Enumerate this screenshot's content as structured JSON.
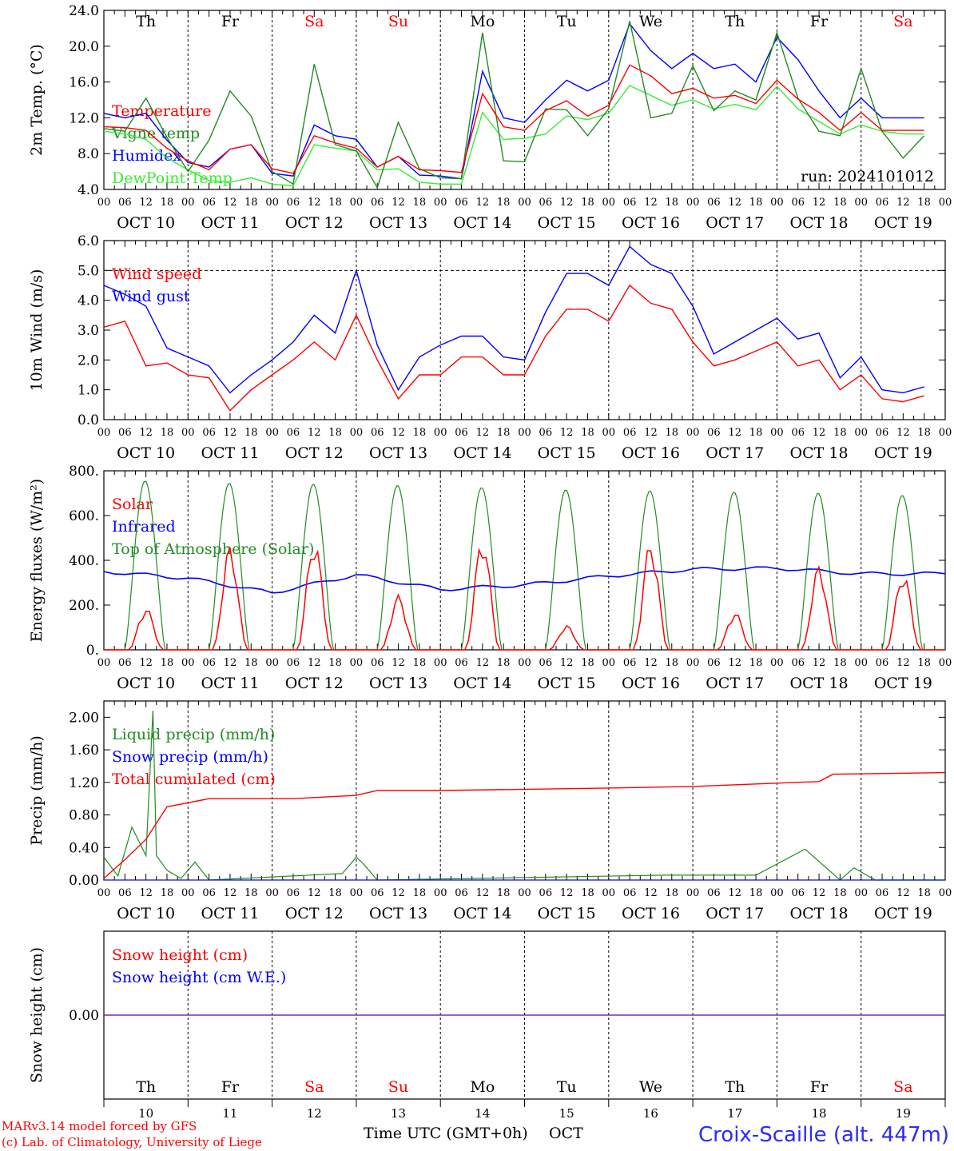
{
  "chart_data": [
    {
      "type": "line",
      "ylabel": "2m Temp. (°C)",
      "ylim": [
        4.0,
        24.0
      ],
      "yticks": [
        "24.0",
        "20.0",
        "16.0",
        "12.0",
        "8.0",
        "4.0"
      ],
      "run_label": "run: 2024101012",
      "legend_placement": "left",
      "x_unit": "hours since 2024-10-10 00 UTC",
      "series": [
        {
          "name": "Temperature",
          "color": "#ff0000",
          "x": [
            0,
            6,
            12,
            18,
            24,
            30,
            36,
            42,
            48,
            54,
            60,
            66,
            72,
            78,
            84,
            90,
            96,
            102,
            108,
            114,
            120,
            126,
            132,
            138,
            144,
            150,
            156,
            162,
            168,
            174,
            180,
            186,
            192,
            198,
            204,
            210,
            216,
            222,
            228,
            234
          ],
          "values": [
            11.0,
            10.9,
            10.6,
            8.6,
            7.2,
            6.2,
            8.5,
            9.0,
            6.3,
            5.8,
            10.0,
            9.2,
            8.6,
            6.5,
            7.7,
            6.2,
            6.1,
            5.9,
            14.7,
            11.0,
            10.6,
            12.8,
            13.9,
            12.2,
            13.4,
            17.9,
            16.7,
            14.7,
            15.3,
            14.2,
            14.5,
            13.6,
            16.2,
            14.1,
            12.6,
            10.6,
            12.6,
            10.6,
            10.6,
            10.6
          ]
        },
        {
          "name": "Vigne temp",
          "color": "#228b22",
          "x": [
            0,
            6,
            12,
            18,
            24,
            30,
            36,
            42,
            48,
            54,
            60,
            66,
            72,
            78,
            84,
            90,
            96,
            102,
            108,
            114,
            120,
            126,
            132,
            138,
            144,
            150,
            156,
            162,
            168,
            174,
            180,
            186,
            192,
            198,
            204,
            210,
            216,
            222,
            228,
            234
          ],
          "values": [
            10.8,
            10.5,
            14.2,
            9.8,
            6.0,
            9.5,
            15.0,
            12.2,
            6.0,
            4.6,
            18.0,
            9.0,
            8.3,
            4.2,
            11.5,
            6.3,
            5.3,
            5.2,
            21.5,
            7.2,
            7.1,
            13.0,
            12.9,
            10.0,
            13.0,
            22.8,
            12.0,
            12.5,
            17.8,
            12.8,
            15.0,
            14.0,
            21.5,
            14.2,
            10.5,
            10.0,
            17.5,
            10.5,
            7.5,
            10.0
          ]
        },
        {
          "name": "Humidex",
          "color": "#0000ff",
          "x": [
            0,
            6,
            12,
            18,
            24,
            30,
            36,
            42,
            48,
            54,
            60,
            66,
            72,
            78,
            84,
            90,
            96,
            102,
            108,
            114,
            120,
            126,
            132,
            138,
            144,
            150,
            156,
            162,
            168,
            174,
            180,
            186,
            192,
            198,
            204,
            210,
            216,
            222,
            228,
            234
          ],
          "values": [
            12.5,
            12.0,
            12.5,
            9.5,
            7.0,
            6.5,
            8.5,
            9.0,
            5.8,
            5.5,
            11.2,
            10.0,
            9.6,
            6.5,
            7.7,
            5.6,
            5.5,
            5.2,
            17.2,
            12.0,
            11.5,
            14.0,
            16.2,
            15.0,
            16.2,
            22.5,
            19.5,
            17.5,
            19.2,
            17.5,
            18.0,
            16.0,
            21.0,
            18.5,
            15.0,
            12.0,
            14.2,
            12.0,
            12.0,
            12.0
          ]
        },
        {
          "name": "DewPoint Temp",
          "color": "#33ee33",
          "x": [
            0,
            6,
            12,
            18,
            24,
            30,
            36,
            42,
            48,
            54,
            60,
            66,
            72,
            78,
            84,
            90,
            96,
            102,
            108,
            114,
            120,
            126,
            132,
            138,
            144,
            150,
            156,
            162,
            168,
            174,
            180,
            186,
            192,
            198,
            204,
            210,
            216,
            222,
            228,
            234
          ],
          "values": [
            10.5,
            10.2,
            9.6,
            7.5,
            6.2,
            5.0,
            4.8,
            5.3,
            4.6,
            4.4,
            9.0,
            8.6,
            8.3,
            6.2,
            6.3,
            4.8,
            4.6,
            4.6,
            12.6,
            9.6,
            9.7,
            10.2,
            12.2,
            11.8,
            12.5,
            15.6,
            14.5,
            13.4,
            14.0,
            13.0,
            13.5,
            12.9,
            15.5,
            13.0,
            11.6,
            10.2,
            11.2,
            10.5,
            10.2,
            10.2
          ]
        }
      ],
      "day_labels": [
        {
          "text": "Th",
          "color": "#000000"
        },
        {
          "text": "Fr",
          "color": "#000000"
        },
        {
          "text": "Sa",
          "color": "#ff0000"
        },
        {
          "text": "Su",
          "color": "#ff0000"
        },
        {
          "text": "Mo",
          "color": "#000000"
        },
        {
          "text": "Tu",
          "color": "#000000"
        },
        {
          "text": "We",
          "color": "#000000"
        },
        {
          "text": "Th",
          "color": "#000000"
        },
        {
          "text": "Fr",
          "color": "#000000"
        },
        {
          "text": "Sa",
          "color": "#ff0000"
        }
      ]
    },
    {
      "type": "line",
      "ylabel": "10m Wind (m/s)",
      "ylim": [
        0.0,
        6.0
      ],
      "yticks": [
        "6.0",
        "5.0",
        "4.0",
        "3.0",
        "2.0",
        "1.0",
        "0.0"
      ],
      "reference_line": 5.0,
      "legend_placement": "left",
      "series": [
        {
          "name": "Wind speed",
          "color": "#ff0000",
          "x": [
            0,
            6,
            12,
            18,
            24,
            30,
            36,
            42,
            48,
            54,
            60,
            66,
            72,
            78,
            84,
            90,
            96,
            102,
            108,
            114,
            120,
            126,
            132,
            138,
            144,
            150,
            156,
            162,
            168,
            174,
            180,
            186,
            192,
            198,
            204,
            210,
            216,
            222,
            228,
            234
          ],
          "values": [
            3.1,
            3.3,
            1.8,
            1.9,
            1.5,
            1.4,
            0.3,
            1.0,
            1.5,
            2.0,
            2.6,
            2.0,
            3.5,
            2.0,
            0.7,
            1.5,
            1.5,
            2.1,
            2.1,
            1.5,
            1.5,
            2.8,
            3.7,
            3.7,
            3.3,
            4.5,
            3.9,
            3.7,
            2.6,
            1.8,
            2.0,
            2.3,
            2.6,
            1.8,
            2.0,
            1.0,
            1.5,
            0.7,
            0.6,
            0.8
          ]
        },
        {
          "name": "Wind gust",
          "color": "#0000ff",
          "x": [
            0,
            6,
            12,
            18,
            24,
            30,
            36,
            42,
            48,
            54,
            60,
            66,
            72,
            78,
            84,
            90,
            96,
            102,
            108,
            114,
            120,
            126,
            132,
            138,
            144,
            150,
            156,
            162,
            168,
            174,
            180,
            186,
            192,
            198,
            204,
            210,
            216,
            222,
            228,
            234
          ],
          "values": [
            4.5,
            4.2,
            3.8,
            2.4,
            2.1,
            1.8,
            0.9,
            1.5,
            2.0,
            2.6,
            3.5,
            2.9,
            5.0,
            2.5,
            1.0,
            2.1,
            2.5,
            2.8,
            2.8,
            2.1,
            2.0,
            3.6,
            4.9,
            4.9,
            4.5,
            5.8,
            5.2,
            4.9,
            3.8,
            2.2,
            2.6,
            3.0,
            3.4,
            2.7,
            2.9,
            1.4,
            2.1,
            1.0,
            0.9,
            1.1
          ]
        }
      ]
    },
    {
      "type": "line",
      "ylabel": "Energy fluxes (W/m²)",
      "ylim": [
        0,
        800
      ],
      "yticks": [
        "800.",
        "600.",
        "400.",
        "200.",
        "0."
      ],
      "legend_placement": "left",
      "series": [
        {
          "name": "Solar",
          "color": "#ff0000",
          "daily_peak": [
            190,
            470,
            500,
            245,
            510,
            110,
            490,
            170,
            380,
            350
          ]
        },
        {
          "name": "Infrared",
          "color": "#0000ff",
          "daily_mean": [
            350,
            320,
            255,
            335,
            270,
            290,
            330,
            360,
            365,
            340
          ]
        },
        {
          "name": "Top of Atmosphere (Solar)",
          "color": "#228b22",
          "daily_peak": [
            755,
            745,
            740,
            735,
            725,
            715,
            710,
            705,
            700,
            690
          ]
        }
      ]
    },
    {
      "type": "line",
      "ylabel": "Precip (mm/h)",
      "ylim": [
        0.0,
        2.2
      ],
      "yticks": [
        "2.00",
        "1.60",
        "1.20",
        "0.80",
        "0.40",
        "0.00"
      ],
      "legend_placement": "left",
      "series": [
        {
          "name": "Liquid precip (mm/h)",
          "color": "#228b22",
          "x": [
            0,
            4,
            8,
            12,
            14,
            15,
            18,
            22,
            26,
            30,
            68,
            72,
            74,
            78,
            160,
            186,
            200,
            210,
            214,
            220
          ],
          "values": [
            0.28,
            0.05,
            0.65,
            0.3,
            2.08,
            0.3,
            0.12,
            0.02,
            0.22,
            0.0,
            0.08,
            0.28,
            0.2,
            0.0,
            0.06,
            0.06,
            0.38,
            0.0,
            0.15,
            0.0
          ]
        },
        {
          "name": "Snow precip (mm/h)",
          "color": "#0000ff",
          "values": [
            0.0
          ]
        },
        {
          "name": "Total cumulated (cm)",
          "color": "#ff0000",
          "x": [
            0,
            6,
            12,
            18,
            24,
            30,
            54,
            72,
            78,
            96,
            144,
            168,
            204,
            208,
            240
          ],
          "values": [
            0.02,
            0.25,
            0.5,
            0.9,
            0.95,
            1.0,
            1.0,
            1.04,
            1.1,
            1.1,
            1.13,
            1.15,
            1.21,
            1.3,
            1.32
          ]
        }
      ]
    },
    {
      "type": "line",
      "ylabel": "Snow height (cm)",
      "yticks": [
        "0.00"
      ],
      "legend_placement": "left",
      "series": [
        {
          "name": "Snow height (cm)",
          "color": "#ff0000",
          "values": [
            0.0
          ]
        },
        {
          "name": "Snow height (cm W.E.)",
          "color": "#0000ff",
          "values": [
            0.0
          ]
        }
      ]
    }
  ],
  "date_labels": [
    "OCT 10",
    "OCT 11",
    "OCT 12",
    "OCT 13",
    "OCT 14",
    "OCT 15",
    "OCT 16",
    "OCT 17",
    "OCT 18",
    "OCT 19"
  ],
  "hour_labels": [
    "00",
    "06",
    "12",
    "18"
  ],
  "footer": {
    "day_numbers": [
      "10",
      "11",
      "12",
      "13",
      "14",
      "15",
      "16",
      "17",
      "18",
      "19"
    ],
    "xlabel": "Time UTC (GMT+0h)",
    "month": "OCT",
    "credit_line1": "MARv3.14 model forced by GFS",
    "credit_line2": "(c) Lab. of Climatology, University of Liege",
    "station": "Croix-Scaille (alt. 447m)"
  }
}
